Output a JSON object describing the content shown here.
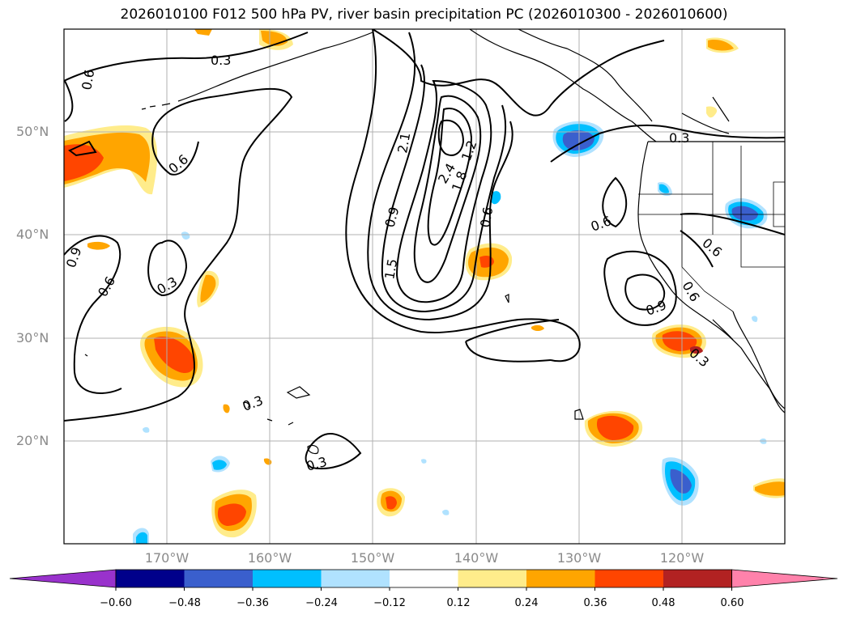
{
  "figure": {
    "title": "2026010100 F012 500 hPa PV, river basin precipitation PC (2026010300 - 2026010600)"
  },
  "map": {
    "lat_labels": [
      "50°N",
      "40°N",
      "30°N",
      "20°N"
    ],
    "lon_labels": [
      "170°W",
      "160°W",
      "150°W",
      "140°W",
      "130°W",
      "120°W"
    ],
    "pv_contour_labels": [
      "0.3",
      "0.6",
      "0.9",
      "1.2",
      "1.5",
      "1.8",
      "2.1",
      "2.4"
    ],
    "gridlines": true,
    "coastline_color": "#000000"
  },
  "colorbar": {
    "ticks": [
      "−0.60",
      "−0.48",
      "−0.36",
      "−0.24",
      "−0.12",
      "0.12",
      "0.24",
      "0.36",
      "0.48",
      "0.60"
    ],
    "colors": [
      "#9932cc",
      "#00008b",
      "#3a5fcd",
      "#00bfff",
      "#b0e2ff",
      "#ffffff",
      "#ffec8b",
      "#ffa500",
      "#ff4500",
      "#b22222",
      "#ff82ab"
    ],
    "extend": "both"
  }
}
